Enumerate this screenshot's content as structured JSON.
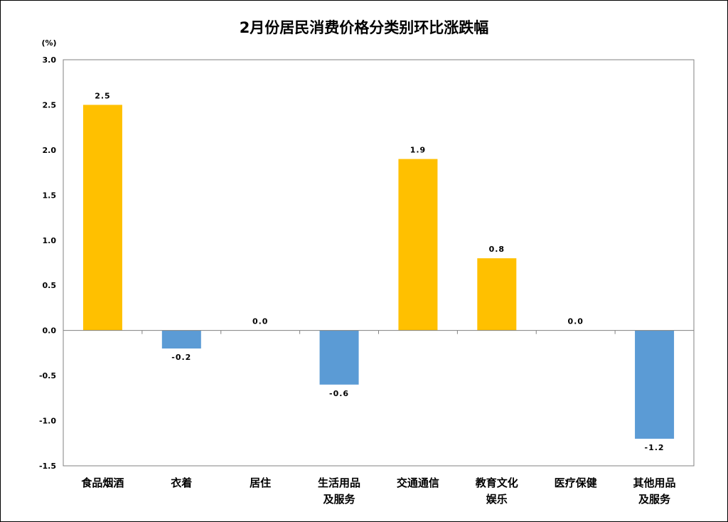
{
  "chart_data": {
    "type": "bar",
    "title": "2月份居民消费价格分类别环比涨跌幅",
    "unit": "(%)",
    "categories": [
      [
        "食品烟酒"
      ],
      [
        "衣着"
      ],
      [
        "居住"
      ],
      [
        "生活用品",
        "及服务"
      ],
      [
        "交通通信"
      ],
      [
        "教育文化",
        "娱乐"
      ],
      [
        "医疗保健"
      ],
      [
        "其他用品",
        "及服务"
      ]
    ],
    "values": [
      2.5,
      -0.2,
      0.0,
      -0.6,
      1.9,
      0.8,
      0.0,
      -1.2
    ],
    "value_labels": [
      "2.5",
      "-0.2",
      "0.0",
      "-0.6",
      "1.9",
      "0.8",
      "0.0",
      "-1.2"
    ],
    "ylim": [
      -1.5,
      3.0
    ],
    "y_ticks": [
      "3.0",
      "2.5",
      "2.0",
      "1.5",
      "1.0",
      "0.5",
      "0.0",
      "-0.5",
      "-1.0",
      "-1.5"
    ],
    "y_tick_values": [
      3.0,
      2.5,
      2.0,
      1.5,
      1.0,
      0.5,
      0.0,
      -0.5,
      -1.0,
      -1.5
    ],
    "colors": {
      "positive": "#FFC000",
      "negative": "#5B9BD5",
      "axis": "#808080"
    },
    "grid": false,
    "legend": "none"
  }
}
